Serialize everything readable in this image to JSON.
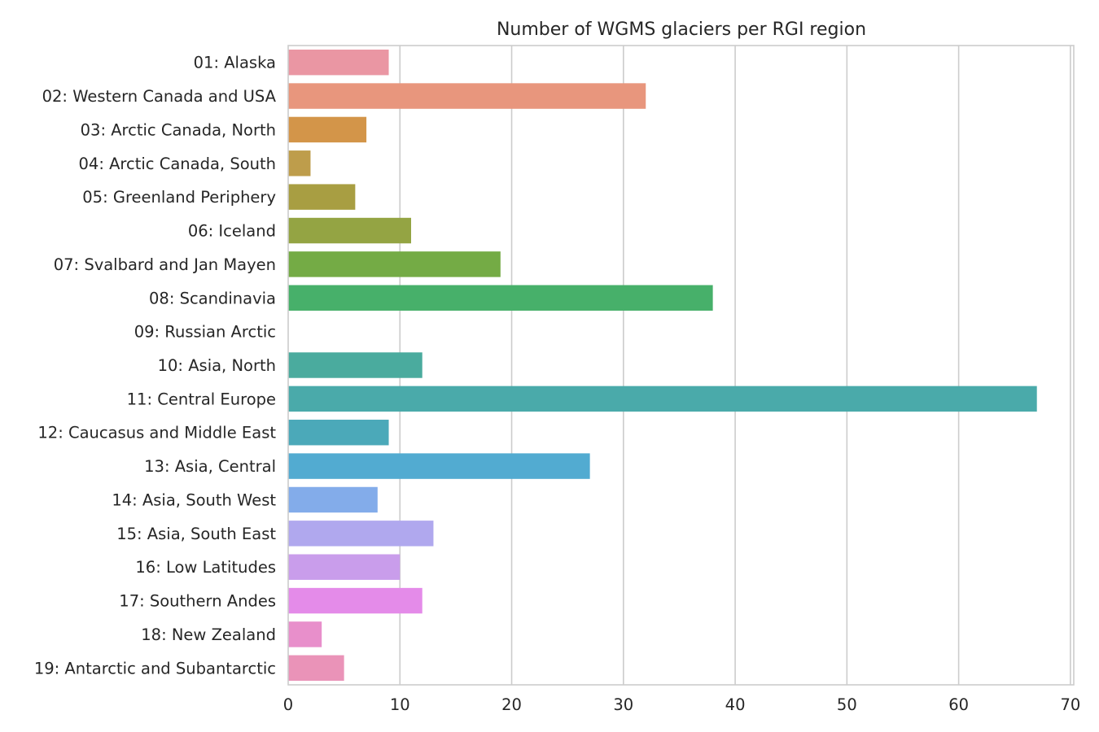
{
  "chart_data": {
    "type": "bar",
    "orientation": "horizontal",
    "title": "Number of WGMS glaciers per RGI region",
    "xlabel": "",
    "ylabel": "",
    "xlim": [
      0,
      70.3
    ],
    "xticks": [
      0,
      10,
      20,
      30,
      40,
      50,
      60,
      70
    ],
    "grid": "vertical",
    "categories": [
      "01: Alaska",
      "02: Western Canada and USA",
      "03: Arctic Canada, North",
      "04: Arctic Canada, South",
      "05: Greenland Periphery",
      "06: Iceland",
      "07: Svalbard and Jan Mayen",
      "08: Scandinavia",
      "09: Russian Arctic",
      "10: Asia, North",
      "11: Central Europe",
      "12: Caucasus and Middle East",
      "13: Asia, Central",
      "14: Asia, South West",
      "15: Asia, South East",
      "16: Low Latitudes",
      "17: Southern Andes",
      "18: New Zealand",
      "19: Antarctic and Subantarctic"
    ],
    "values": [
      9,
      32,
      7,
      2,
      6,
      11,
      19,
      38,
      0,
      12,
      67,
      9,
      27,
      8,
      13,
      10,
      12,
      3,
      5
    ],
    "colors": [
      "#ea96a3",
      "#e8967d",
      "#d39549",
      "#be9d4b",
      "#a89e42",
      "#94a443",
      "#74ab45",
      "#47b06a",
      "#4aad92",
      "#4aab9e",
      "#4aaaaa",
      "#4ba9b9",
      "#52abd1",
      "#83acea",
      "#b0a8ee",
      "#c99deb",
      "#e48be9",
      "#e88fcb",
      "#ea93b8"
    ]
  }
}
